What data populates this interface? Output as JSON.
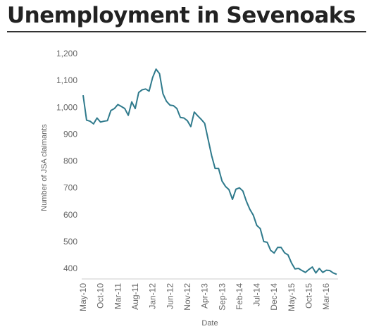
{
  "title": "Unemployment in Sevenoaks",
  "colors": {
    "line": "#2f7a8c",
    "axis": "#cccccc",
    "text": "#666666",
    "title": "#222222"
  },
  "chart_data": {
    "type": "line",
    "xlabel": "Date",
    "ylabel": "Number of JSA claimants",
    "ylim": [
      360,
      1200
    ],
    "yticks": [
      "400",
      "500",
      "600",
      "700",
      "800",
      "900",
      "1,000",
      "1,100",
      "1,200"
    ],
    "ytick_values": [
      400,
      500,
      600,
      700,
      800,
      900,
      1000,
      1100,
      1200
    ],
    "xticks": [
      "May-10",
      "Oct-10",
      "Mar-11",
      "Aug-11",
      "Jan-12",
      "Jun-12",
      "Nov-12",
      "Apr-13",
      "Sep-13",
      "Feb-14",
      "Jul-14",
      "Dec-14",
      "May-15",
      "Oct-15",
      "Mar-16"
    ],
    "x_start": "May-10",
    "x_end": "Jul-16",
    "grid": false,
    "series": [
      {
        "values": [
          1045,
          952,
          948,
          938,
          960,
          945,
          948,
          950,
          988,
          995,
          1010,
          1003,
          995,
          970,
          1020,
          995,
          1055,
          1065,
          1068,
          1060,
          1110,
          1142,
          1125,
          1050,
          1022,
          1008,
          1006,
          995,
          962,
          960,
          950,
          928,
          982,
          968,
          955,
          940,
          880,
          820,
          772,
          772,
          725,
          705,
          693,
          657,
          695,
          700,
          688,
          650,
          620,
          598,
          560,
          548,
          500,
          497,
          467,
          457,
          478,
          478,
          458,
          450,
          420,
          398,
          400,
          392,
          385,
          396,
          405,
          383,
          400,
          385,
          393,
          392,
          383,
          378
        ]
      }
    ]
  }
}
